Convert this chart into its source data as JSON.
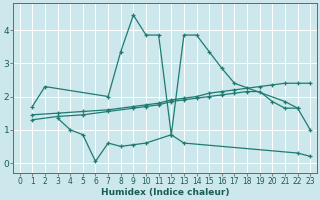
{
  "xlabel": "Humidex (Indice chaleur)",
  "xlim": [
    -0.5,
    23.5
  ],
  "ylim": [
    -0.3,
    4.8
  ],
  "yticks": [
    0,
    1,
    2,
    3,
    4
  ],
  "xticks": [
    0,
    1,
    2,
    3,
    4,
    5,
    6,
    7,
    8,
    9,
    10,
    11,
    12,
    13,
    14,
    15,
    16,
    17,
    18,
    19,
    20,
    21,
    22,
    23
  ],
  "bg_color": "#cde8ec",
  "grid_color": "#ffffff",
  "line_color": "#1e7b72",
  "lines": [
    {
      "x": [
        1,
        2,
        7,
        8,
        9,
        10,
        11,
        12,
        13,
        14,
        15,
        16,
        17,
        21,
        22
      ],
      "y": [
        1.7,
        2.3,
        2.0,
        3.35,
        4.45,
        3.85,
        3.85,
        0.85,
        3.85,
        3.85,
        3.35,
        2.85,
        2.4,
        1.85,
        1.65
      ]
    },
    {
      "x": [
        3,
        4,
        5,
        6,
        7,
        8,
        9,
        10,
        12,
        13,
        22,
        23
      ],
      "y": [
        1.35,
        1.0,
        0.85,
        0.05,
        0.6,
        0.5,
        0.55,
        0.6,
        0.85,
        0.6,
        0.3,
        0.2
      ]
    },
    {
      "x": [
        1,
        3,
        5,
        7,
        9,
        10,
        11,
        12,
        13,
        14,
        15,
        16,
        17,
        18,
        19,
        20,
        21,
        22,
        23
      ],
      "y": [
        1.45,
        1.5,
        1.55,
        1.6,
        1.7,
        1.75,
        1.8,
        1.9,
        1.95,
        2.0,
        2.1,
        2.15,
        2.2,
        2.25,
        2.3,
        2.35,
        2.4,
        2.4,
        2.4
      ]
    },
    {
      "x": [
        1,
        3,
        5,
        7,
        9,
        10,
        11,
        12,
        13,
        14,
        15,
        16,
        17,
        18,
        19,
        20,
        21,
        22,
        23
      ],
      "y": [
        1.3,
        1.4,
        1.45,
        1.55,
        1.65,
        1.7,
        1.75,
        1.85,
        1.9,
        1.95,
        2.0,
        2.05,
        2.1,
        2.15,
        2.15,
        1.85,
        1.65,
        1.65,
        1.0
      ]
    }
  ]
}
